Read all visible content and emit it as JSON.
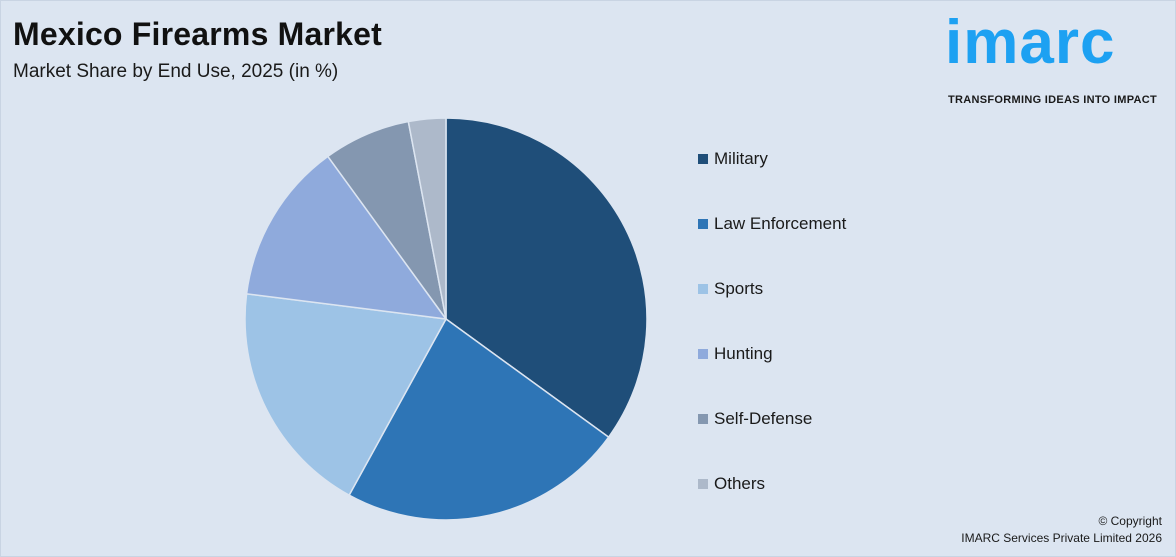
{
  "header": {
    "title": "Mexico Firearms Market",
    "subtitle": "Market Share by End Use, 2025 (in %)"
  },
  "logo": {
    "wordmark": "imarc",
    "tagline": "TRANSFORMING IDEAS INTO IMPACT",
    "brand_color": "#1da1f2"
  },
  "chart_data": {
    "type": "pie",
    "title": "Mexico Firearms Market",
    "subtitle": "Market Share by End Use, 2025 (in %)",
    "legend_position": "right",
    "slices": [
      {
        "label": "Military",
        "value": 35,
        "color": "#1f4e79"
      },
      {
        "label": "Law Enforcement",
        "value": 23,
        "color": "#2e75b6"
      },
      {
        "label": "Sports",
        "value": 19,
        "color": "#9dc3e6"
      },
      {
        "label": "Hunting",
        "value": 13,
        "color": "#8faadc"
      },
      {
        "label": "Self-Defense",
        "value": 7,
        "color": "#8497b0"
      },
      {
        "label": "Others",
        "value": 3,
        "color": "#adb9ca"
      }
    ]
  },
  "footer": {
    "copyright_line1": "© Copyright",
    "copyright_line2": "IMARC Services Private Limited 2026"
  }
}
